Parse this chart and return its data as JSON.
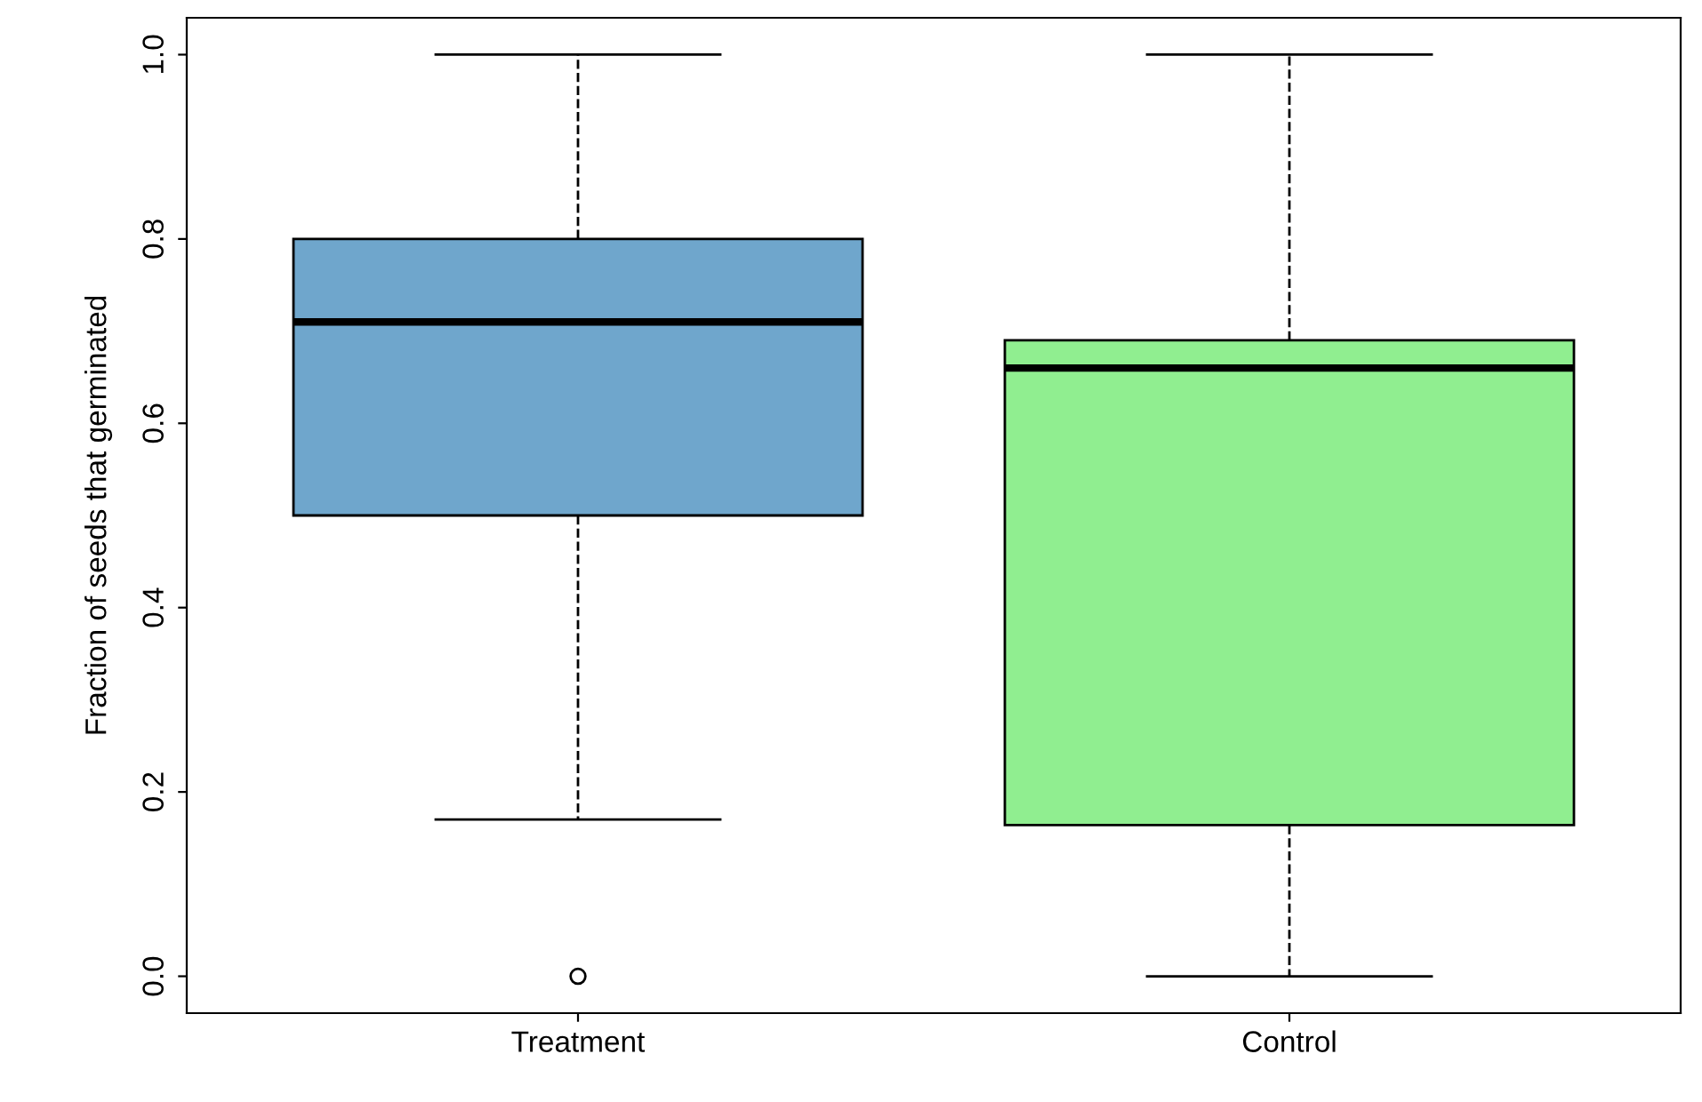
{
  "chart_data": {
    "type": "box",
    "ylabel": "Fraction of seeds that germinated",
    "categories": [
      "Treatment",
      "Control"
    ],
    "series": [
      {
        "colors": [
          "#6fa6cc",
          "#90ee90"
        ],
        "boxes": [
          {
            "low": 0.17,
            "q1": 0.5,
            "median": 0.71,
            "q3": 0.8,
            "high": 1.0,
            "outliers": [
              0.0
            ]
          },
          {
            "low": 0.0,
            "q1": 0.164,
            "median": 0.66,
            "q3": 0.69,
            "high": 1.0
          }
        ]
      }
    ],
    "ylim": [
      -0.04,
      1.04
    ],
    "yticks": [
      {
        "value": 0,
        "label": "0.0"
      },
      {
        "value": 0.2,
        "label": "0.2"
      },
      {
        "value": 0.4,
        "label": "0.4"
      },
      {
        "value": 0.6,
        "label": "0.6"
      },
      {
        "value": 0.8,
        "label": "0.8"
      },
      {
        "value": 1.0,
        "label": "1.0"
      }
    ],
    "grid": false,
    "legend": false
  }
}
